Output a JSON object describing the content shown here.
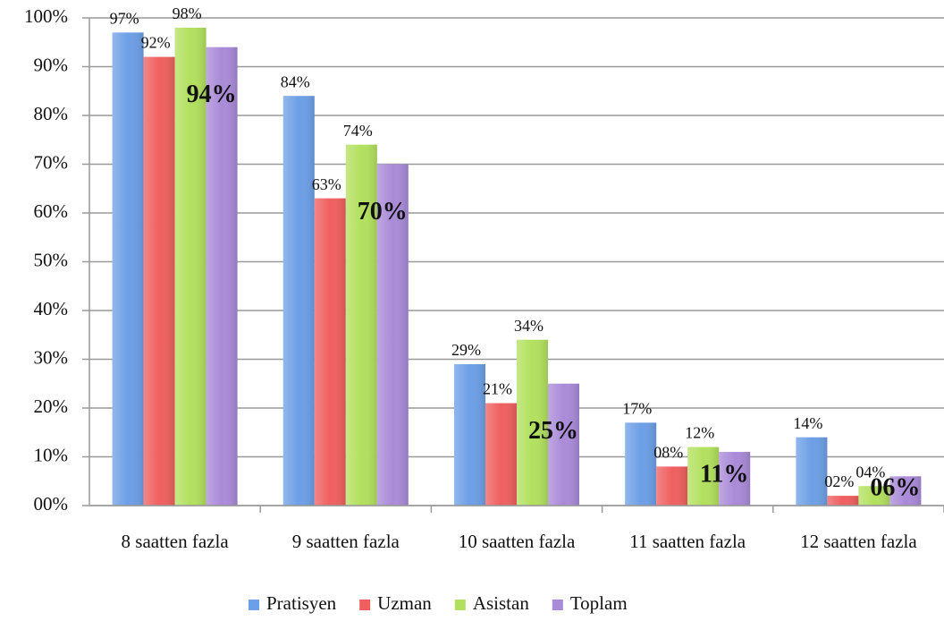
{
  "chart_data": {
    "type": "bar",
    "categories": [
      "8 saatten fazla",
      "9 saatten fazla",
      "10 saatten fazla",
      "11 saatten fazla",
      "12 saatten fazla"
    ],
    "series": [
      {
        "name": "Pratisyen",
        "color": "#6d9fe6",
        "values": [
          97,
          84,
          29,
          17,
          14
        ],
        "value_labels": [
          "97%",
          "84%",
          "29%",
          "17%",
          "14%"
        ]
      },
      {
        "name": "Uzman",
        "color": "#ef5f5f",
        "values": [
          92,
          63,
          21,
          8,
          2
        ],
        "value_labels": [
          "92%",
          "63%",
          "21%",
          "08%",
          "02%"
        ]
      },
      {
        "name": "Asistan",
        "color": "#b2e05e",
        "values": [
          98,
          74,
          34,
          12,
          4
        ],
        "value_labels": [
          "98%",
          "74%",
          "34%",
          "12%",
          "04%"
        ]
      },
      {
        "name": "Toplam",
        "color": "#a98ad8",
        "values": [
          94,
          70,
          25,
          11,
          6
        ],
        "value_labels": [
          "94%",
          "70%",
          "25%",
          "11%",
          "06%"
        ]
      }
    ],
    "ylim": [
      0,
      100
    ],
    "yticks": [
      {
        "value": 0,
        "label": "00%"
      },
      {
        "value": 10,
        "label": "10%"
      },
      {
        "value": 20,
        "label": "20%"
      },
      {
        "value": 30,
        "label": "30%"
      },
      {
        "value": 40,
        "label": "40%"
      },
      {
        "value": 50,
        "label": "50%"
      },
      {
        "value": 60,
        "label": "60%"
      },
      {
        "value": 70,
        "label": "70%"
      },
      {
        "value": 80,
        "label": "80%"
      },
      {
        "value": 90,
        "label": "90%"
      },
      {
        "value": 100,
        "label": "100%"
      }
    ],
    "grid": true,
    "legend": "bottom"
  }
}
